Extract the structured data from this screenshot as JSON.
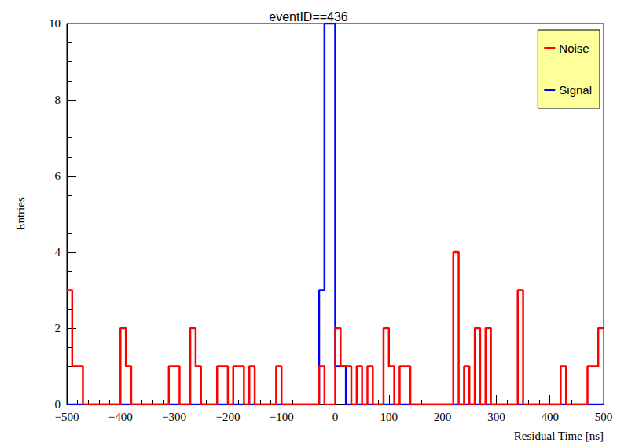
{
  "chart_data": {
    "type": "histogram",
    "title": "eventID==436",
    "x_label": "Residual Time [ns]",
    "y_label": "Entries",
    "bins": [
      -500,
      -490,
      -480,
      -470,
      -460,
      -450,
      -440,
      -430,
      -420,
      -410,
      -400,
      -390,
      -380,
      -370,
      -360,
      -350,
      -340,
      -330,
      -320,
      -310,
      -300,
      -290,
      -280,
      -270,
      -260,
      -250,
      -240,
      -230,
      -220,
      -210,
      -200,
      -190,
      -180,
      -170,
      -160,
      -150,
      -140,
      -130,
      -120,
      -110,
      -100,
      -90,
      -80,
      -70,
      -60,
      -50,
      -40,
      -30,
      -20,
      -10,
      0,
      10,
      20,
      30,
      40,
      50,
      60,
      70,
      80,
      90,
      100,
      110,
      120,
      130,
      140,
      150,
      160,
      170,
      180,
      190,
      200,
      210,
      220,
      230,
      240,
      250,
      260,
      270,
      280,
      290,
      300,
      310,
      320,
      330,
      340,
      350,
      360,
      370,
      380,
      390,
      400,
      410,
      420,
      430,
      440,
      450,
      460,
      470,
      480,
      490,
      500
    ],
    "series": [
      {
        "name": "Noise",
        "color": "#ff0000",
        "values": [
          3,
          1,
          1,
          0,
          0,
          0,
          0,
          0,
          0,
          0,
          2,
          1,
          0,
          0,
          0,
          0,
          0,
          0,
          0,
          1,
          1,
          0,
          0,
          2,
          1,
          0,
          0,
          0,
          1,
          1,
          0,
          1,
          1,
          0,
          1,
          0,
          0,
          0,
          0,
          1,
          0,
          0,
          0,
          0,
          0,
          0,
          0,
          1,
          0,
          0,
          2,
          1,
          1,
          0,
          1,
          0,
          1,
          0,
          0,
          2,
          1,
          0,
          1,
          1,
          0,
          0,
          0,
          0,
          0,
          0,
          0,
          0,
          4,
          0,
          1,
          0,
          2,
          0,
          2,
          0,
          0,
          0,
          0,
          0,
          3,
          0,
          0,
          0,
          0,
          0,
          0,
          0,
          1,
          0,
          0,
          0,
          0,
          1,
          1,
          2
        ]
      },
      {
        "name": "Signal",
        "color": "#0000ff",
        "values": [
          0,
          0,
          0,
          0,
          0,
          0,
          0,
          0,
          0,
          0,
          0,
          0,
          0,
          0,
          0,
          0,
          0,
          0,
          0,
          0,
          0,
          0,
          0,
          0,
          0,
          0,
          0,
          0,
          0,
          0,
          0,
          0,
          0,
          0,
          0,
          0,
          0,
          0,
          0,
          0,
          0,
          0,
          0,
          0,
          0,
          0,
          0,
          3,
          10,
          10,
          1,
          1,
          0,
          0,
          0,
          0,
          0,
          0,
          0,
          0,
          0,
          0,
          0,
          0,
          0,
          0,
          0,
          0,
          0,
          0,
          0,
          0,
          0,
          0,
          0,
          0,
          0,
          0,
          0,
          0,
          0,
          0,
          0,
          0,
          0,
          0,
          0,
          0,
          0,
          0,
          0,
          0,
          0,
          0,
          0,
          0,
          0,
          0,
          0,
          0
        ]
      }
    ],
    "xlim": [
      -500,
      500
    ],
    "xticks": [
      {
        "value": -500,
        "label": "−500"
      },
      {
        "value": -400,
        "label": "−400"
      },
      {
        "value": -300,
        "label": "−300"
      },
      {
        "value": -200,
        "label": "−200"
      },
      {
        "value": -100,
        "label": "−100"
      },
      0,
      100,
      200,
      300,
      400,
      500
    ],
    "ylim": [
      0,
      10
    ],
    "yticks": [
      0,
      2,
      4,
      6,
      8,
      10
    ],
    "grid": false,
    "legend": "upper right"
  }
}
